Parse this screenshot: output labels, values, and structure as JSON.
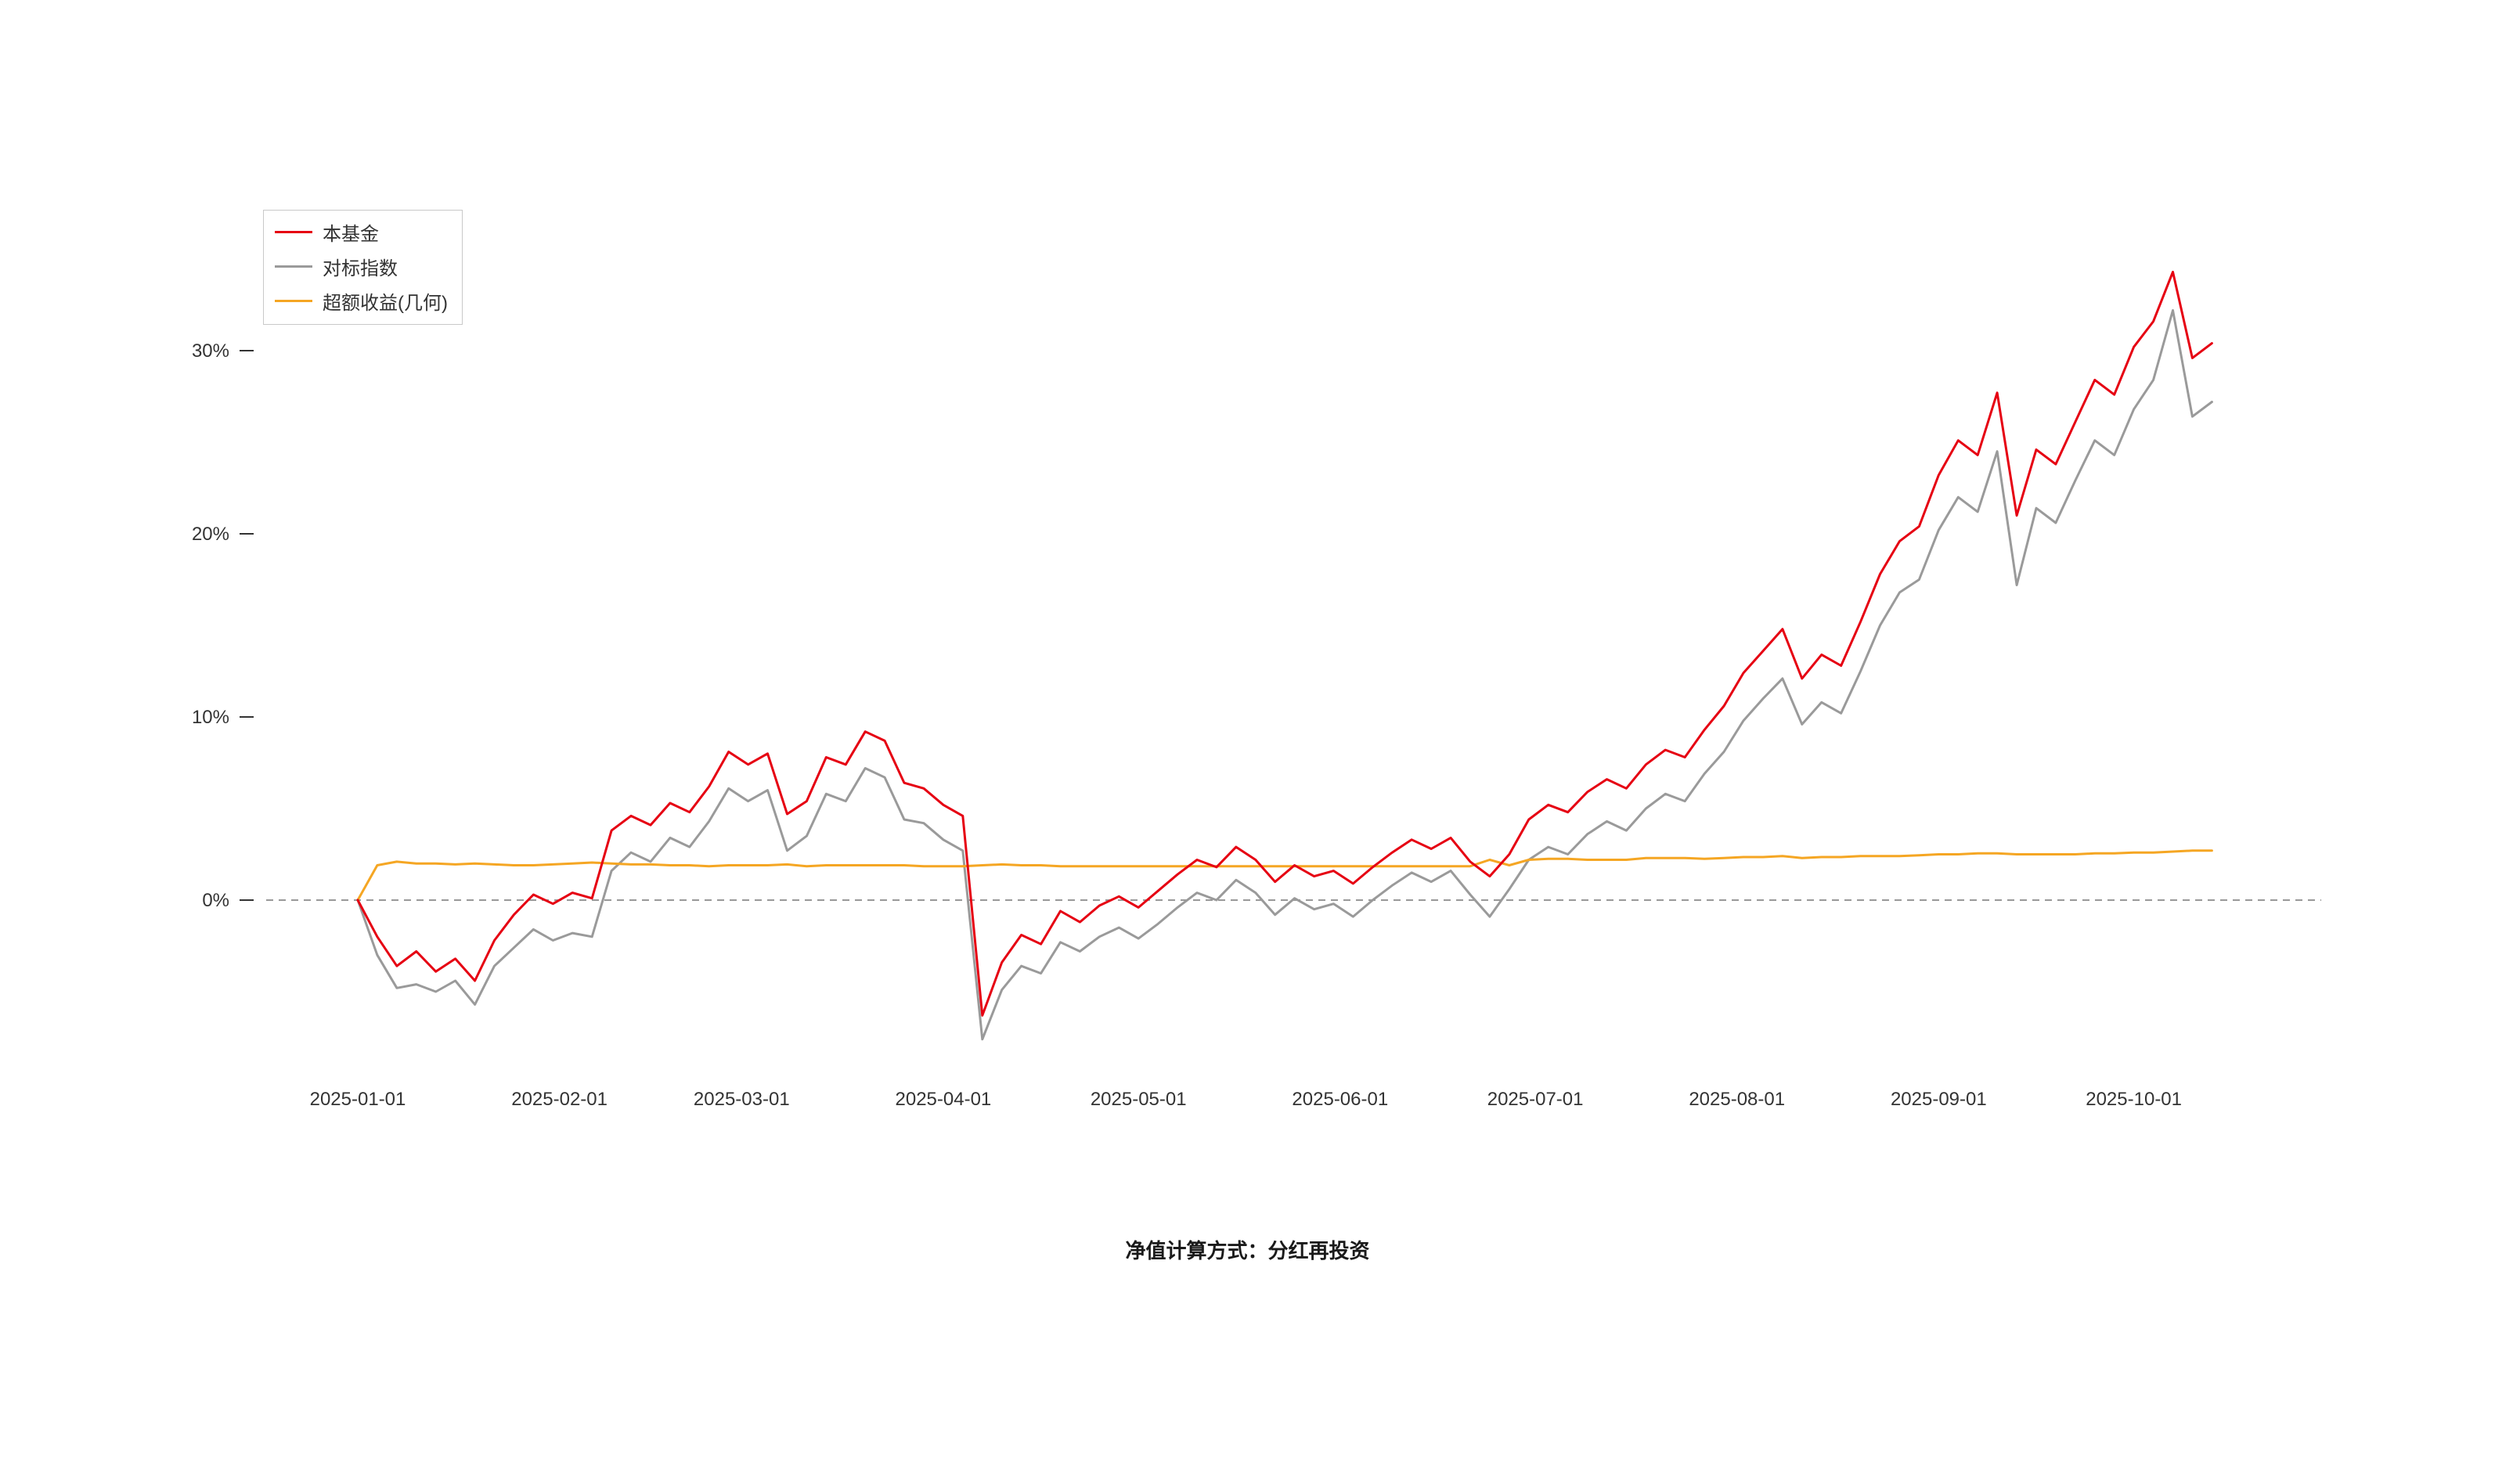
{
  "page": {
    "background": "#ffffff",
    "caption": "净值计算方式：分红再投资"
  },
  "legend": {
    "items": [
      {
        "label": "本基金",
        "color": "#e60012"
      },
      {
        "label": "对标指数",
        "color": "#9a9a9a"
      },
      {
        "label": "超额收益(几何)",
        "color": "#f5a623"
      }
    ]
  },
  "chart_data": {
    "type": "line",
    "title": "",
    "xlabel": "",
    "ylabel": "",
    "grid": false,
    "legend_position": "top-left",
    "x_axis": {
      "start_date": "2025-01-01",
      "point_interval_days": 3,
      "tick_labels": [
        "2025-01-01",
        "2025-02-01",
        "2025-03-01",
        "2025-04-01",
        "2025-05-01",
        "2025-06-01",
        "2025-07-01",
        "2025-08-01",
        "2025-09-01",
        "2025-10-01"
      ],
      "tick_day_offsets": [
        0,
        31,
        59,
        90,
        120,
        151,
        181,
        212,
        243,
        273
      ]
    },
    "y_axis": {
      "ticks": [
        0,
        10,
        20,
        30
      ],
      "tick_labels": [
        "0%",
        "10%",
        "20%",
        "30%"
      ],
      "ylim": [
        -10,
        37
      ]
    },
    "zero_line": {
      "y": 0,
      "style": "dashed",
      "color": "#999999"
    },
    "series": [
      {
        "name": "本基金",
        "color": "#e60012",
        "values": [
          0,
          -2,
          -3.6,
          -2.8,
          -3.9,
          -3.2,
          -4.4,
          -2.2,
          -0.8,
          0.3,
          -0.2,
          0.4,
          0.1,
          3.8,
          4.6,
          4.1,
          5.3,
          4.8,
          6.2,
          8.1,
          7.4,
          8,
          4.7,
          5.4,
          7.8,
          7.4,
          9.2,
          8.7,
          6.4,
          6.1,
          5.2,
          4.6,
          -6.3,
          -3.4,
          -1.9,
          -2.4,
          -0.6,
          -1.2,
          -0.3,
          0.2,
          -0.4,
          0.5,
          1.4,
          2.2,
          1.8,
          2.9,
          2.2,
          1,
          1.9,
          1.3,
          1.6,
          0.9,
          1.8,
          2.6,
          3.3,
          2.8,
          3.4,
          2.1,
          1.3,
          2.5,
          4.4,
          5.2,
          4.8,
          5.9,
          6.6,
          6.1,
          7.4,
          8.2,
          7.8,
          9.3,
          10.6,
          12.4,
          13.6,
          14.8,
          12.1,
          13.4,
          12.8,
          15.2,
          17.8,
          19.6,
          20.4,
          23.2,
          25.1,
          24.3,
          27.7,
          21,
          24.6,
          23.8,
          26.1,
          28.4,
          27.6,
          30.2,
          31.6,
          34.3,
          29.6,
          30.4
        ]
      },
      {
        "name": "对标指数",
        "color": "#9a9a9a",
        "values": [
          0,
          -3,
          -4.8,
          -4.6,
          -5,
          -4.4,
          -5.7,
          -3.6,
          -2.6,
          -1.6,
          -2.2,
          -1.8,
          -2,
          1.6,
          2.6,
          2.1,
          3.4,
          2.9,
          4.3,
          6.1,
          5.4,
          6,
          2.7,
          3.5,
          5.8,
          5.4,
          7.2,
          6.7,
          4.4,
          4.2,
          3.3,
          2.7,
          -7.6,
          -4.9,
          -3.6,
          -4,
          -2.3,
          -2.8,
          -2,
          -1.5,
          -2.1,
          -1.3,
          -0.4,
          0.4,
          0,
          1.1,
          0.4,
          -0.8,
          0.1,
          -0.5,
          -0.2,
          -0.9,
          0,
          0.8,
          1.5,
          1,
          1.6,
          0.3,
          -0.9,
          0.6,
          2.2,
          2.9,
          2.5,
          3.6,
          4.3,
          3.8,
          5,
          5.8,
          5.4,
          6.9,
          8.1,
          9.8,
          11,
          12.1,
          9.6,
          10.8,
          10.2,
          12.5,
          15,
          16.8,
          17.5,
          20.2,
          22,
          21.2,
          24.5,
          17.2,
          21.4,
          20.6,
          22.9,
          25.1,
          24.3,
          26.8,
          28.4,
          32.2,
          26.4,
          27.2
        ]
      },
      {
        "name": "超额收益(几何)",
        "color": "#f5a623",
        "values": [
          0,
          1.9,
          2.1,
          2,
          2,
          1.95,
          2,
          1.95,
          1.9,
          1.9,
          1.95,
          2,
          2.05,
          2,
          1.95,
          1.95,
          1.9,
          1.9,
          1.85,
          1.9,
          1.9,
          1.9,
          1.95,
          1.85,
          1.9,
          1.9,
          1.9,
          1.9,
          1.9,
          1.85,
          1.85,
          1.85,
          1.9,
          1.95,
          1.9,
          1.9,
          1.85,
          1.85,
          1.85,
          1.85,
          1.85,
          1.85,
          1.85,
          1.85,
          1.85,
          1.85,
          1.85,
          1.85,
          1.85,
          1.85,
          1.85,
          1.85,
          1.85,
          1.85,
          1.85,
          1.85,
          1.85,
          1.85,
          2.2,
          1.9,
          2.2,
          2.25,
          2.25,
          2.2,
          2.2,
          2.2,
          2.3,
          2.3,
          2.3,
          2.25,
          2.3,
          2.35,
          2.35,
          2.4,
          2.3,
          2.35,
          2.35,
          2.4,
          2.4,
          2.4,
          2.45,
          2.5,
          2.5,
          2.55,
          2.55,
          2.5,
          2.5,
          2.5,
          2.5,
          2.55,
          2.55,
          2.6,
          2.6,
          2.65,
          2.7,
          2.7
        ]
      }
    ]
  }
}
